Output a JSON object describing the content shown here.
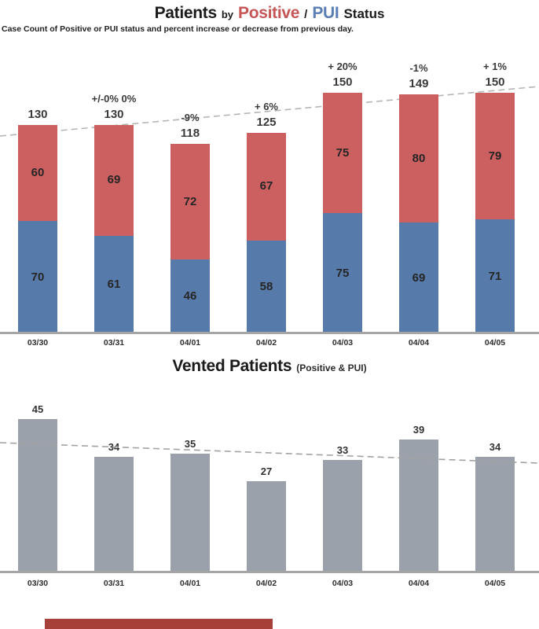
{
  "page": {
    "background": "#ffffff"
  },
  "top_chart": {
    "title": {
      "part1": "Patients",
      "part2": "by",
      "part3": "Positive",
      "part4": "/",
      "part5": "PUI",
      "part6": "Status"
    },
    "subtitle": "Case Count of Positive or PUI status and percent increase or decrease from previous day.",
    "colors": {
      "positive_red": "#cc5f5f",
      "pui_blue": "#567aa9",
      "title_red": "#c65555",
      "title_blue": "#5b7fb5",
      "axis": "#a5a5a5",
      "trendline": "#b5b5b5"
    }
  },
  "bottom_chart": {
    "title": "Vented Patients",
    "title_suffix": "(Positive & PUI)",
    "colors": {
      "bar_gray": "#9ba1aa",
      "axis": "#a5a5a5",
      "trendline": "#a2a2a2"
    }
  },
  "chart_data": [
    {
      "type": "bar",
      "stacked": true,
      "title": "Patients by Positive / PUI Status",
      "subtitle": "Case Count of Positive or PUI status and percent increase or decrease from previous day.",
      "categories": [
        "03/30",
        "03/31",
        "04/01",
        "04/02",
        "04/03",
        "04/04",
        "04/05"
      ],
      "series": [
        {
          "name": "PUI",
          "color": "#567aa9",
          "position": "bottom",
          "values": [
            70,
            61,
            46,
            58,
            75,
            69,
            71
          ]
        },
        {
          "name": "Positive",
          "color": "#cc5f5f",
          "position": "top",
          "values": [
            60,
            69,
            72,
            67,
            75,
            80,
            79
          ]
        }
      ],
      "totals": [
        130,
        130,
        118,
        125,
        150,
        149,
        150
      ],
      "pct_change_labels": [
        "",
        "+/-0% 0%",
        "-9%",
        "+ 6%",
        "+ 20%",
        "-1%",
        "+ 1%"
      ],
      "trendline": "dashed gray line rising from left to right",
      "ylim": [
        0,
        160
      ],
      "grid": false,
      "legend": "none (series identified by colored words in title)"
    },
    {
      "type": "bar",
      "title": "Vented Patients (Positive & PUI)",
      "categories": [
        "03/30",
        "03/31",
        "04/01",
        "04/02",
        "04/03",
        "04/04",
        "04/05"
      ],
      "values": [
        45,
        34,
        35,
        27,
        33,
        39,
        34
      ],
      "bar_color": "#9ba1aa",
      "trendline": "dashed gray line declining slightly from left to right",
      "ylim": [
        0,
        50
      ],
      "grid": false,
      "legend": "none"
    }
  ]
}
